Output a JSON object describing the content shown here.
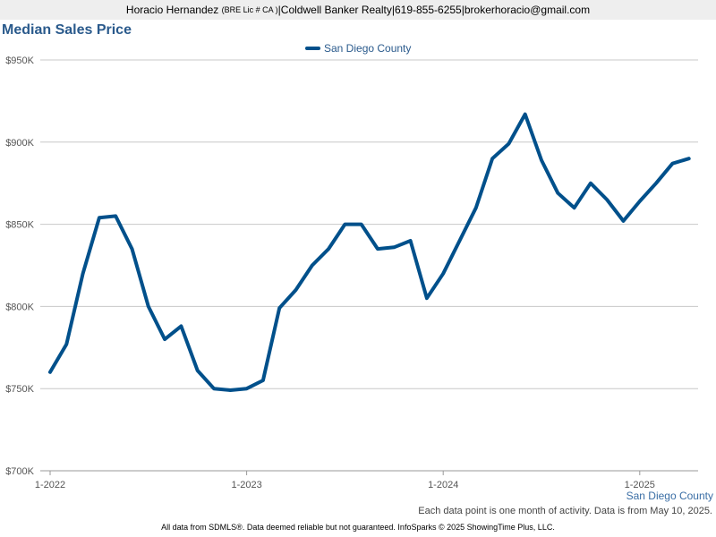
{
  "header": {
    "agent_name": "Horacio Hernandez",
    "license": "(BRE Lic # CA )",
    "brokerage": "Coldwell Banker Realty",
    "phone": "619-855-6255",
    "email": "brokerhoracio@gmail.com",
    "separator": " | "
  },
  "colors": {
    "series": "#00508b",
    "title": "#2a5a8c",
    "grid": "#c8c8c8"
  },
  "chart_data": {
    "type": "line",
    "title": "Median Sales Price",
    "xlabel": "",
    "ylabel": "",
    "ylim": [
      700000,
      950000
    ],
    "yticks": [
      700000,
      750000,
      800000,
      850000,
      900000,
      950000
    ],
    "ytick_labels": [
      "$700K",
      "$750K",
      "$800K",
      "$850K",
      "$900K",
      "$950K"
    ],
    "xticks": [
      {
        "index": 0,
        "label": "1-2022"
      },
      {
        "index": 12,
        "label": "1-2023"
      },
      {
        "index": 24,
        "label": "1-2024"
      },
      {
        "index": 36,
        "label": "1-2025"
      }
    ],
    "grid": true,
    "legend_position": "top-center",
    "series": [
      {
        "name": "San Diego County",
        "values": [
          760000,
          777000,
          820000,
          854000,
          855000,
          835000,
          800000,
          780000,
          788000,
          761000,
          750000,
          749000,
          750000,
          755000,
          799000,
          810000,
          825000,
          835000,
          850000,
          850000,
          835000,
          836000,
          840000,
          805000,
          820000,
          840000,
          860000,
          890000,
          899000,
          917000,
          889000,
          869000,
          860000,
          875000,
          865000,
          852000,
          864000,
          875000,
          887000,
          890000
        ]
      }
    ]
  },
  "source_label": "San Diego County",
  "note": "Each data point is one month of activity. Data is from May 10, 2025.",
  "footer": "All data from SDMLS®. Data deemed reliable but not guaranteed. InfoSparks © 2025 ShowingTime Plus, LLC."
}
